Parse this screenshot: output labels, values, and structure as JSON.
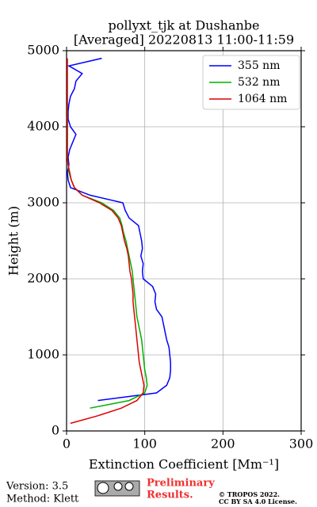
{
  "chart_data": {
    "type": "line",
    "title": [
      "pollyxt_tjk at Dushanbe",
      "[Averaged] 20220813 11:00-11:59"
    ],
    "xlabel": "Extinction Coefficient [Mm⁻¹]",
    "ylabel": "Height (m)",
    "xlim": [
      0,
      300
    ],
    "xticks": [
      0,
      100,
      200,
      300
    ],
    "ylim": [
      0,
      5000
    ],
    "yticks": [
      0,
      1000,
      2000,
      3000,
      4000,
      5000
    ],
    "grid": true,
    "legend": "upper right",
    "y": [
      100,
      200,
      300,
      400,
      500,
      600,
      700,
      800,
      900,
      1000,
      1100,
      1200,
      1300,
      1400,
      1500,
      1600,
      1700,
      1800,
      1900,
      2000,
      2100,
      2200,
      2300,
      2400,
      2500,
      2600,
      2700,
      2800,
      2900,
      3000,
      3100,
      3200,
      3300,
      3400,
      3500,
      3600,
      3700,
      3800,
      3900,
      4000,
      4100,
      4200,
      4300,
      4400,
      4500,
      4600,
      4700,
      4800,
      4900
    ],
    "series": [
      {
        "name": "355 nm",
        "color": "#0000ff",
        "values": [
          null,
          null,
          null,
          40,
          115,
          128,
          132,
          133,
          133,
          132,
          131,
          128,
          126,
          124,
          122,
          115,
          113,
          114,
          110,
          98,
          97,
          98,
          95,
          97,
          96,
          94,
          92,
          80,
          75,
          72,
          30,
          5,
          2,
          1,
          3,
          2,
          4,
          8,
          12,
          5,
          2,
          2,
          3,
          5,
          10,
          12,
          20,
          3,
          45
        ]
      },
      {
        "name": "532 nm",
        "color": "#00b000",
        "values": [
          null,
          null,
          30,
          80,
          100,
          103,
          102,
          100,
          99,
          98,
          97,
          96,
          94,
          92,
          90,
          89,
          88,
          87,
          86,
          85,
          84,
          82,
          80,
          78,
          76,
          73,
          71,
          68,
          60,
          45,
          20,
          10,
          6,
          3,
          2,
          1,
          1,
          1,
          1,
          1,
          1,
          1,
          1,
          null,
          null,
          null,
          null,
          null,
          null
        ]
      },
      {
        "name": "1064 nm",
        "color": "#dd0000",
        "values": [
          5,
          40,
          70,
          90,
          98,
          99,
          97,
          95,
          93,
          92,
          91,
          90,
          89,
          88,
          87,
          86,
          85,
          85,
          84,
          83,
          81,
          80,
          79,
          77,
          74,
          72,
          70,
          66,
          58,
          42,
          20,
          10,
          6,
          4,
          2,
          1,
          1,
          1,
          1,
          1,
          1,
          1,
          1,
          1,
          1,
          1,
          1,
          1,
          1
        ]
      }
    ]
  },
  "footer": {
    "version": "Version: 3.5",
    "method": "Method: Klett",
    "preliminary": [
      "Preliminary",
      "Results."
    ],
    "copyright": [
      "© TROPOS 2022.",
      "CC BY SA 4.0 License."
    ]
  }
}
